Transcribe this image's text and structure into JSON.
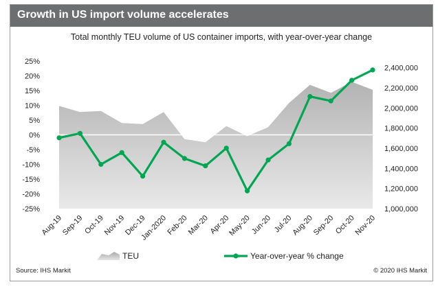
{
  "header": {
    "title": "Growth in US import volume accelerates",
    "subtitle": "Total monthly TEU volume of US container imports, with year-over-year change",
    "source": "Source: IHS Markit",
    "copyright": "© 2020 IHS Markit"
  },
  "colors": {
    "title_bar": "#6d6e70",
    "line": "#00a651",
    "area": "#bfbfbf"
  },
  "chart_data": {
    "type": "area",
    "categories": [
      "Aug-19",
      "Sep-19",
      "Oct-19",
      "Nov-19",
      "Dec-19",
      "Jan-2020",
      "Feb-20",
      "Mar-20",
      "Apr-20",
      "May-20",
      "Jun-20",
      "Jul-20",
      "Aug-20",
      "Sep-20",
      "Oct-20",
      "Nov-20"
    ],
    "series": [
      {
        "name": "TEU",
        "type": "area",
        "axis": "right",
        "values": [
          2020000,
          1960000,
          1970000,
          1850000,
          1840000,
          1960000,
          1690000,
          1660000,
          1820000,
          1720000,
          1810000,
          2050000,
          2230000,
          2150000,
          2260000,
          2180000
        ]
      },
      {
        "name": "Year-over-year % change",
        "type": "line",
        "axis": "left",
        "values": [
          -1.0,
          0.5,
          -10.0,
          -6.0,
          -14.0,
          -2.5,
          -8.0,
          -10.5,
          -4.5,
          -19.0,
          -8.5,
          -3.0,
          13.0,
          11.5,
          18.5,
          22.0
        ]
      }
    ],
    "left_axis": {
      "ylim": [
        -25,
        25
      ],
      "ticks": [
        25,
        20,
        15,
        10,
        5,
        0,
        -5,
        -10,
        -15,
        -20,
        -25
      ],
      "tick_labels": [
        "25%",
        "20%",
        "15%",
        "10%",
        "5%",
        "0%",
        "-5%",
        "-10%",
        "-15%",
        "-20%",
        "-25%"
      ]
    },
    "right_axis": {
      "ylim": [
        1000000,
        2500000
      ],
      "ticks": [
        2400000,
        2200000,
        2000000,
        1800000,
        1600000,
        1400000,
        1200000,
        1000000
      ],
      "tick_labels": [
        "2,400,000",
        "2,200,000",
        "2,000,000",
        "1,800,000",
        "1,600,000",
        "1,400,000",
        "1,200,000",
        "1,000,000"
      ]
    },
    "legend": {
      "position": "bottom",
      "entries": [
        "TEU",
        "Year-over-year % change"
      ]
    },
    "grid": false
  }
}
